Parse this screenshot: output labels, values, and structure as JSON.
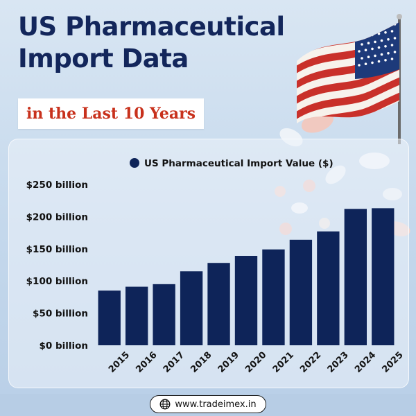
{
  "header": {
    "title_line1": "US Pharmaceutical",
    "title_line2": "Import Data",
    "subtitle": "in the Last 10 Years"
  },
  "colors": {
    "title": "#13265b",
    "subtitle": "#c8311c",
    "bar": "#0e2459",
    "background": "#c9dbed"
  },
  "chart_data": {
    "type": "bar",
    "categories": [
      "2015",
      "2016",
      "2017",
      "2018",
      "2019",
      "2020",
      "2021",
      "2022",
      "2023",
      "2024",
      "2025"
    ],
    "series": [
      {
        "name": "US Pharmaceutical Import Value ($)",
        "values": [
          85,
          91,
          95,
          115,
          128,
          139,
          149,
          164,
          177,
          212,
          213
        ]
      }
    ],
    "y_tick_labels": [
      "$0 billion",
      "$50 billion",
      "$100 billion",
      "$150 billion",
      "$200 billion",
      "$250 billion"
    ],
    "y_ticks": [
      0,
      50,
      100,
      150,
      200,
      250
    ],
    "ylim": [
      0,
      250
    ],
    "grid": false,
    "legend_position": "top-right"
  },
  "footer": {
    "url": "www.tradeimex.in",
    "icon": "globe-icon"
  }
}
